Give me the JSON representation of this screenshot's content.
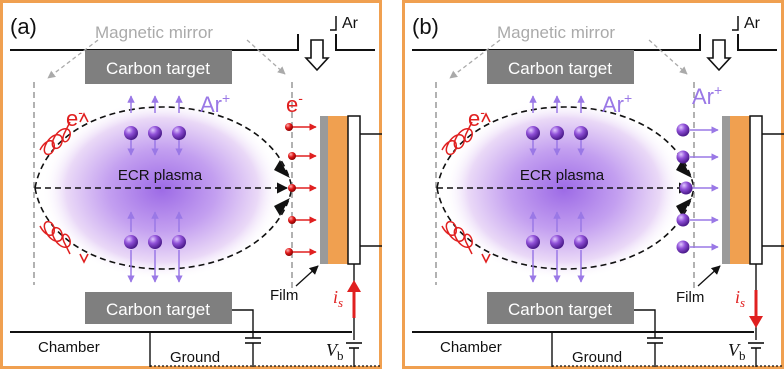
{
  "colors": {
    "frame": "#f0a050",
    "target_fill": "#7f7f7f",
    "plasma": "#a070e8",
    "ion_arrow": "#a07ae6",
    "electron": "#e02020",
    "film_orange": "#f0a050",
    "film_gray": "#9a9a9a"
  },
  "panels": [
    {
      "panel_label": "(a)",
      "mirror_label": "Magnetic mirror",
      "gas_label": "Ar",
      "top_target_label": "Carbon target",
      "bottom_target_label": "Carbon target",
      "ion_label_main": "Ar",
      "ion_label_main_sup": "+",
      "electron_label": "e",
      "electron_label_sup": "-",
      "substrate_particle_label": "e",
      "substrate_particle_label_sup": "-",
      "plasma_label": "ECR plasma",
      "film_label": "Film",
      "current_label": "i",
      "current_sub": "s",
      "chamber_label": "Chamber",
      "ground_label": "Ground",
      "bias_label": "V",
      "bias_sub": "b",
      "substrate_particles": "electrons",
      "current_direction": "up"
    },
    {
      "panel_label": "(b)",
      "mirror_label": "Magnetic mirror",
      "gas_label": "Ar",
      "top_target_label": "Carbon target",
      "bottom_target_label": "Carbon target",
      "ion_label_main": "Ar",
      "ion_label_main_sup": "+",
      "electron_label": "e",
      "electron_label_sup": "-",
      "substrate_particle_label": "Ar",
      "substrate_particle_label_sup": "+",
      "plasma_label": "ECR plasma",
      "film_label": "Film",
      "current_label": "i",
      "current_sub": "s",
      "chamber_label": "Chamber",
      "ground_label": "Ground",
      "bias_label": "V",
      "bias_sub": "b",
      "substrate_particles": "ions",
      "current_direction": "down"
    }
  ]
}
